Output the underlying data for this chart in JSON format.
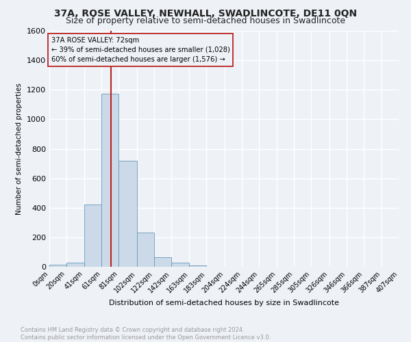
{
  "title": "37A, ROSE VALLEY, NEWHALL, SWADLINCOTE, DE11 0QN",
  "subtitle": "Size of property relative to semi-detached houses in Swadlincote",
  "xlabel": "Distribution of semi-detached houses by size in Swadlincote",
  "ylabel": "Number of semi-detached properties",
  "footnote1": "Contains HM Land Registry data © Crown copyright and database right 2024.",
  "footnote2": "Contains public sector information licensed under the Open Government Licence v3.0.",
  "bin_edges": [
    0,
    20,
    41,
    61,
    81,
    102,
    122,
    142,
    163,
    183,
    204,
    224,
    244,
    265,
    285,
    305,
    326,
    346,
    366,
    387,
    407
  ],
  "bin_labels": [
    "0sqm",
    "20sqm",
    "41sqm",
    "61sqm",
    "81sqm",
    "102sqm",
    "122sqm",
    "142sqm",
    "163sqm",
    "183sqm",
    "204sqm",
    "224sqm",
    "244sqm",
    "265sqm",
    "285sqm",
    "305sqm",
    "326sqm",
    "346sqm",
    "366sqm",
    "387sqm",
    "407sqm"
  ],
  "bar_heights": [
    12,
    30,
    420,
    1175,
    720,
    230,
    65,
    30,
    10,
    0,
    0,
    0,
    0,
    0,
    0,
    0,
    0,
    0,
    0,
    0
  ],
  "bar_color": "#ccd9e8",
  "bar_edge_color": "#6699bb",
  "property_line_x": 72,
  "property_line_color": "#bb2222",
  "annotation_title": "37A ROSE VALLEY: 72sqm",
  "annotation_line1": "← 39% of semi-detached houses are smaller (1,028)",
  "annotation_line2": "60% of semi-detached houses are larger (1,576) →",
  "annotation_box_color": "#bb2222",
  "ylim": [
    0,
    1600
  ],
  "yticks": [
    0,
    200,
    400,
    600,
    800,
    1000,
    1200,
    1400,
    1600
  ],
  "background_color": "#eef2f7",
  "plot_bg_color": "#eef2f7",
  "grid_color": "#ffffff",
  "title_fontsize": 10,
  "subtitle_fontsize": 9
}
